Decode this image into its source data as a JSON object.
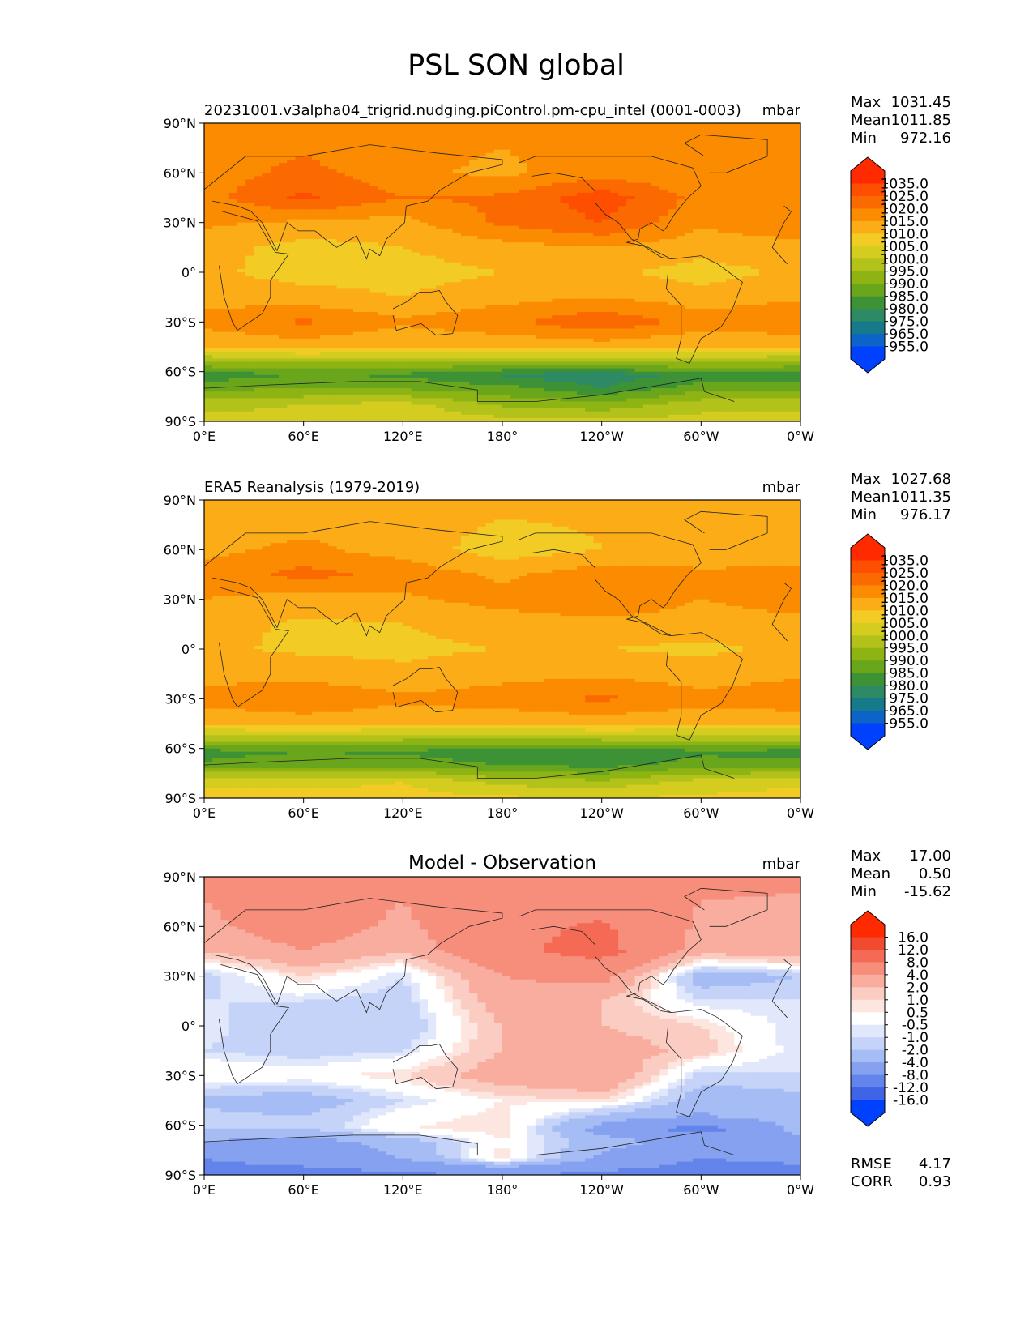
{
  "figure": {
    "title": "PSL SON global"
  },
  "chart_data": [
    {
      "type": "heatmap",
      "panel": "test",
      "title": "",
      "left_label": "20231001.v3alpha04_trigrid.nudging.piControl.pm-cpu_intel (0001-0003)",
      "units": "mbar",
      "stats": {
        "max_label": "Max",
        "max": "1031.45",
        "mean_label": "Mean",
        "mean": "1011.85",
        "min_label": "Min",
        "min": "972.16"
      },
      "colorbar": {
        "levels": [
          "1035.0",
          "1025.0",
          "1020.0",
          "1015.0",
          "1010.0",
          "1005.0",
          "1000.0",
          "995.0",
          "990.0",
          "985.0",
          "980.0",
          "975.0",
          "965.0",
          "955.0"
        ],
        "colors": [
          "#ff2a00",
          "#fe4e00",
          "#fb6a00",
          "#fb8b00",
          "#fbac17",
          "#f2cc25",
          "#d4cc1e",
          "#b2c21a",
          "#8eb414",
          "#6aa61c",
          "#3e9236",
          "#2e8a64",
          "#177a8b",
          "#0c64c8",
          "#0040ff"
        ]
      },
      "xticks": [
        "0°E",
        "60°E",
        "120°E",
        "180°",
        "120°W",
        "60°W",
        "0°W"
      ],
      "yticks": [
        "90°N",
        "60°N",
        "30°N",
        "0°",
        "30°S",
        "60°S",
        "90°S"
      ],
      "field_rows": [
        {
          "lat": 90,
          "values": [
            1015,
            1016,
            1017,
            1016,
            1015,
            1017,
            1018
          ]
        },
        {
          "lat": 60,
          "values": [
            1017,
            1022,
            1016,
            1014,
            1018,
            1016,
            1015
          ]
        },
        {
          "lat": 45,
          "values": [
            1018,
            1026,
            1020,
            1021,
            1028,
            1018,
            1020
          ]
        },
        {
          "lat": 30,
          "values": [
            1016,
            1014,
            1013,
            1021,
            1025,
            1016,
            1019
          ]
        },
        {
          "lat": 15,
          "values": [
            1012,
            1008,
            1010,
            1013,
            1015,
            1012,
            1013
          ]
        },
        {
          "lat": 0,
          "values": [
            1011,
            1008,
            1008,
            1010,
            1011,
            1008,
            1011
          ]
        },
        {
          "lat": -15,
          "values": [
            1013,
            1012,
            1010,
            1013,
            1015,
            1012,
            1014
          ]
        },
        {
          "lat": -30,
          "values": [
            1017,
            1021,
            1016,
            1019,
            1024,
            1018,
            1020
          ]
        },
        {
          "lat": -45,
          "values": [
            1010,
            1012,
            1010,
            1011,
            1012,
            1010,
            1010
          ]
        },
        {
          "lat": -55,
          "values": [
            993,
            995,
            994,
            993,
            994,
            994,
            993
          ]
        },
        {
          "lat": -62,
          "values": [
            982,
            985,
            984,
            979,
            976,
            982,
            982
          ]
        },
        {
          "lat": -70,
          "values": [
            988,
            990,
            989,
            987,
            980,
            988,
            989
          ]
        },
        {
          "lat": -80,
          "values": [
            998,
            1000,
            1002,
            994,
            992,
            998,
            998
          ]
        },
        {
          "lat": -90,
          "values": [
            1002,
            1003,
            1004,
            1002,
            1001,
            1002,
            1002
          ]
        }
      ]
    },
    {
      "type": "heatmap",
      "panel": "reference",
      "title": "",
      "left_label": "ERA5 Reanalysis (1979-2019)",
      "units": "mbar",
      "stats": {
        "max_label": "Max",
        "max": "1027.68",
        "mean_label": "Mean",
        "mean": "1011.35",
        "min_label": "Min",
        "min": "976.17"
      },
      "colorbar": {
        "levels": [
          "1035.0",
          "1025.0",
          "1020.0",
          "1015.0",
          "1010.0",
          "1005.0",
          "1000.0",
          "995.0",
          "990.0",
          "985.0",
          "980.0",
          "975.0",
          "965.0",
          "955.0"
        ],
        "colors": [
          "#ff2a00",
          "#fe4e00",
          "#fb6a00",
          "#fb8b00",
          "#fbac17",
          "#f2cc25",
          "#d4cc1e",
          "#b2c21a",
          "#8eb414",
          "#6aa61c",
          "#3e9236",
          "#2e8a64",
          "#177a8b",
          "#0c64c8",
          "#0040ff"
        ]
      },
      "xticks": [
        "0°E",
        "60°E",
        "120°E",
        "180°",
        "120°W",
        "60°W",
        "0°W"
      ],
      "yticks": [
        "90°N",
        "60°N",
        "30°N",
        "0°",
        "30°S",
        "60°S",
        "90°S"
      ],
      "field_rows": [
        {
          "lat": 90,
          "values": [
            1011,
            1012,
            1013,
            1012,
            1011,
            1013,
            1012
          ]
        },
        {
          "lat": 60,
          "values": [
            1014,
            1016,
            1013,
            1007,
            1010,
            1012,
            1013
          ]
        },
        {
          "lat": 45,
          "values": [
            1016,
            1022,
            1018,
            1014,
            1018,
            1016,
            1016
          ]
        },
        {
          "lat": 30,
          "values": [
            1015,
            1013,
            1014,
            1017,
            1020,
            1015,
            1018
          ]
        },
        {
          "lat": 15,
          "values": [
            1012,
            1009,
            1010,
            1012,
            1013,
            1012,
            1013
          ]
        },
        {
          "lat": 0,
          "values": [
            1011,
            1009,
            1009,
            1010,
            1010,
            1009,
            1011
          ]
        },
        {
          "lat": -15,
          "values": [
            1013,
            1013,
            1011,
            1013,
            1014,
            1012,
            1014
          ]
        },
        {
          "lat": -30,
          "values": [
            1017,
            1020,
            1016,
            1018,
            1021,
            1017,
            1019
          ]
        },
        {
          "lat": -45,
          "values": [
            1011,
            1012,
            1011,
            1011,
            1012,
            1011,
            1011
          ]
        },
        {
          "lat": -55,
          "values": [
            995,
            996,
            995,
            994,
            995,
            995,
            995
          ]
        },
        {
          "lat": -62,
          "values": [
            983,
            985,
            984,
            981,
            980,
            984,
            983
          ]
        },
        {
          "lat": -70,
          "values": [
            986,
            988,
            988,
            985,
            983,
            987,
            987
          ]
        },
        {
          "lat": -80,
          "values": [
            1004,
            1003,
            1005,
            998,
            996,
            1002,
            1004
          ]
        },
        {
          "lat": -90,
          "values": [
            1007,
            1007,
            1007,
            1006,
            1005,
            1006,
            1007
          ]
        }
      ]
    },
    {
      "type": "heatmap",
      "panel": "difference",
      "title": "Model - Observation",
      "left_label": "",
      "units": "mbar",
      "stats": {
        "max_label": "Max",
        "max": "17.00",
        "mean_label": "Mean",
        "mean": "0.50",
        "min_label": "Min",
        "min": "-15.62"
      },
      "metrics": {
        "rmse_label": "RMSE",
        "rmse": "4.17",
        "corr_label": "CORR",
        "corr": "0.93"
      },
      "colorbar": {
        "levels": [
          "16.0",
          "12.0",
          "8.0",
          "4.0",
          "2.0",
          "1.0",
          "0.5",
          "-0.5",
          "-1.0",
          "-2.0",
          "-4.0",
          "-8.0",
          "-12.0",
          "-16.0"
        ],
        "colors": [
          "#ff2a00",
          "#f04a30",
          "#f46a54",
          "#f78e7c",
          "#f9ad9e",
          "#fbcdc2",
          "#fde6e0",
          "#ffffff",
          "#e2e8fb",
          "#c5d3f8",
          "#a6bcf4",
          "#85a1ef",
          "#6384ea",
          "#3f64e6",
          "#0040ff"
        ]
      },
      "xticks": [
        "0°E",
        "60°E",
        "120°E",
        "180°",
        "120°W",
        "60°W",
        "0°W"
      ],
      "yticks": [
        "90°N",
        "60°N",
        "30°N",
        "0°",
        "30°S",
        "60°S",
        "90°S"
      ],
      "field_rows": [
        {
          "lat": 90,
          "values": [
            4.5,
            4.5,
            4.5,
            4.5,
            4.5,
            4.5,
            4.5
          ]
        },
        {
          "lat": 60,
          "values": [
            3.5,
            5.5,
            3.5,
            7.0,
            8.5,
            3.5,
            3.0
          ]
        },
        {
          "lat": 45,
          "values": [
            2.0,
            4.0,
            2.0,
            7.0,
            9.5,
            2.5,
            3.5
          ]
        },
        {
          "lat": 30,
          "values": [
            -1.5,
            1.0,
            -1.0,
            4.0,
            5.0,
            -3.0,
            -2.0
          ]
        },
        {
          "lat": 15,
          "values": [
            -1.0,
            -1.0,
            -1.5,
            3.0,
            2.0,
            -1.0,
            -1.0
          ]
        },
        {
          "lat": 0,
          "values": [
            -0.8,
            -1.5,
            -2.0,
            2.0,
            2.0,
            1.0,
            -1.0
          ]
        },
        {
          "lat": -15,
          "values": [
            -1.0,
            -1.5,
            -1.0,
            2.0,
            3.0,
            1.5,
            -1.0
          ]
        },
        {
          "lat": -30,
          "values": [
            0.5,
            0.0,
            1.0,
            3.0,
            4.0,
            -1.5,
            -1.0
          ]
        },
        {
          "lat": -45,
          "values": [
            -2.5,
            -3.0,
            -1.0,
            0.5,
            1.0,
            -3.0,
            -2.5
          ]
        },
        {
          "lat": -55,
          "values": [
            -1.5,
            -2.0,
            0.0,
            0.8,
            -2.5,
            -4.5,
            -2.0
          ]
        },
        {
          "lat": -62,
          "values": [
            -2.0,
            -2.0,
            0.5,
            1.0,
            -5.0,
            -10.0,
            -3.0
          ]
        },
        {
          "lat": -70,
          "values": [
            -4.0,
            -5.0,
            -3.0,
            0.5,
            -3.0,
            -5.0,
            -4.5
          ]
        },
        {
          "lat": -80,
          "values": [
            -8.0,
            -6.0,
            -4.0,
            1.0,
            -4.5,
            -8.0,
            -7.0
          ]
        },
        {
          "lat": -90,
          "values": [
            -10.0,
            -10.0,
            -9.0,
            -8.0,
            -9.0,
            -10.0,
            -10.0
          ]
        }
      ]
    }
  ]
}
